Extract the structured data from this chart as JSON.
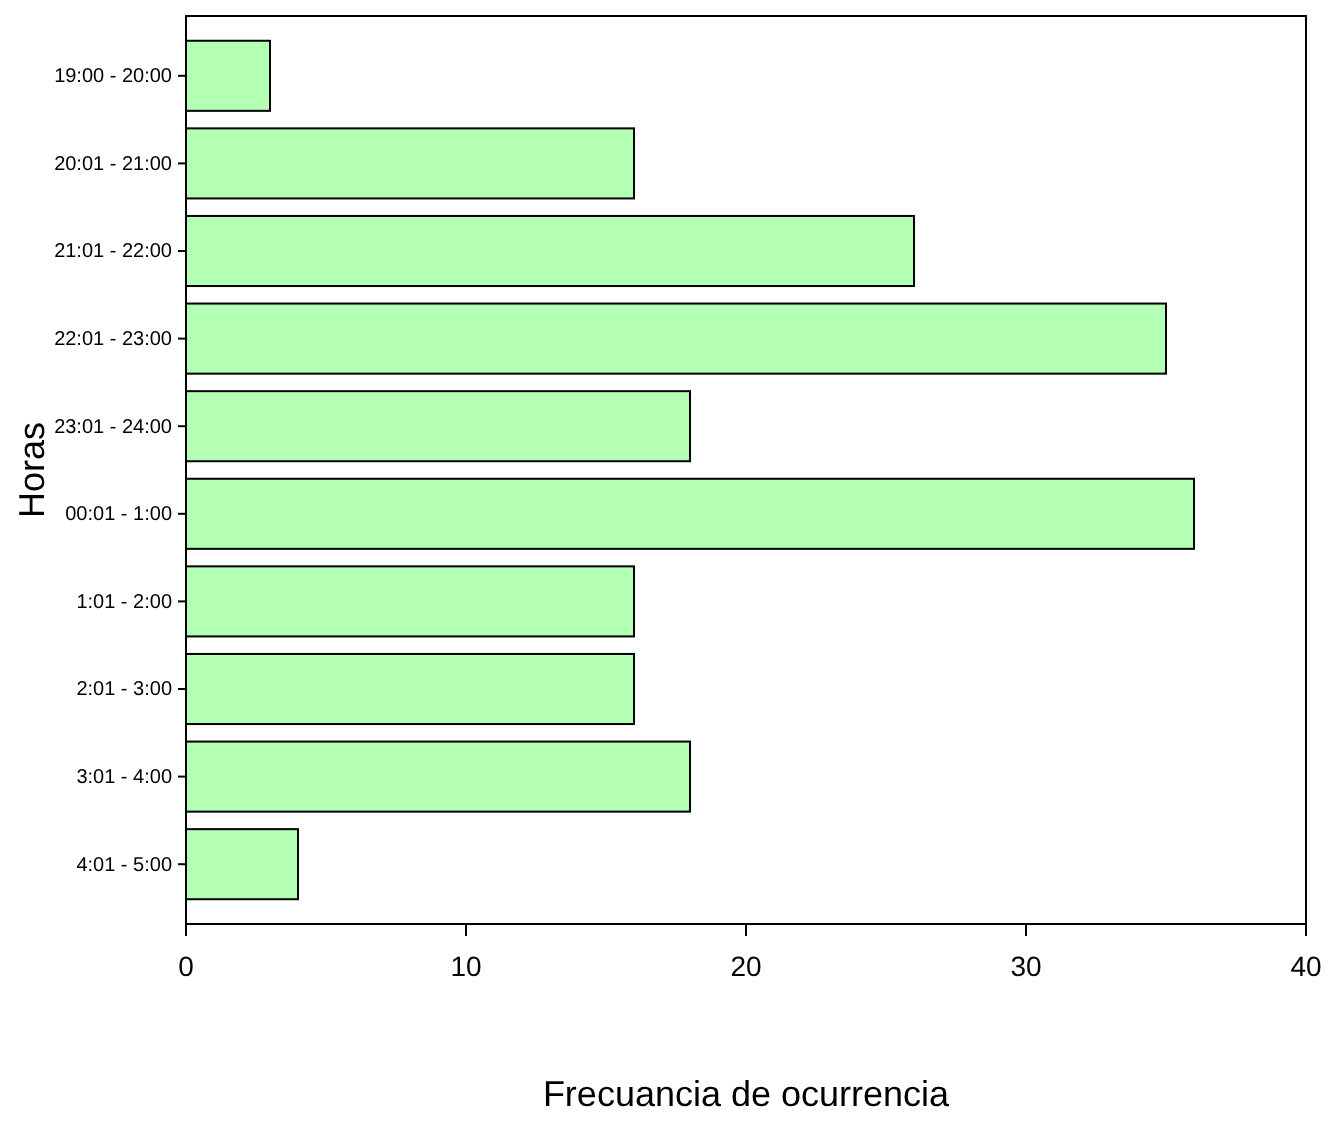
{
  "chart_data": {
    "type": "bar",
    "orientation": "horizontal",
    "xlabel": "Frecuancia de ocurrencia",
    "ylabel": "Horas",
    "categories": [
      "19:00 - 20:00",
      "20:01 - 21:00",
      "21:01 - 22:00",
      "22:01 - 23:00",
      "23:01 - 24:00",
      "00:01 - 1:00",
      "1:01 - 2:00",
      "2:01 - 3:00",
      "3:01 - 4:00",
      "4:01 - 5:00"
    ],
    "values": [
      3,
      16,
      26,
      35,
      18,
      36,
      16,
      16,
      18,
      4
    ],
    "color": "#b3ffb3",
    "xlim": [
      0,
      40
    ],
    "xticks": [
      0,
      10,
      20,
      30,
      40
    ],
    "grid": false
  }
}
